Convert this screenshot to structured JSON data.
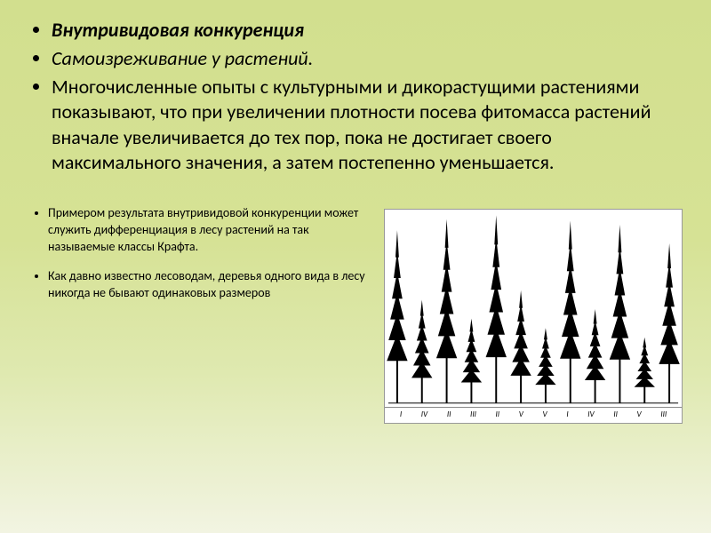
{
  "slide": {
    "background_gradient": [
      "#d2df8e",
      "#d6e295",
      "#dfe9b0",
      "#f2f4e2"
    ],
    "font_family": "Calibri",
    "main_bullets": {
      "title": "Внутривидовая конкуренция",
      "subtitle": " Самоизреживание у растений.",
      "body": "Многочисленные опыты с культурными и дикорастущими растениями показывают, что при увеличении плотности посева фитомасса растений вначале увеличивается до тех пор, пока не достигает своего максимального значения, а затем постепенно уменьшается."
    },
    "small_bullets": [
      "Примером результата внутривидовой конкуренции может служить дифференциация в лесу растений на так называемые классы Крафта.",
      "Как давно известно лесоводам, деревья одного вида в лесу никогда не бывают одинаковых размеров"
    ],
    "figure": {
      "type": "illustration",
      "description": "Row of coniferous trees of varying heights illustrating Kraft classes",
      "background_color": "#ffffff",
      "border_color": "#999999",
      "tree_count": 12,
      "tree_heights_rel": [
        0.92,
        0.55,
        0.98,
        0.45,
        1.0,
        0.6,
        0.4,
        0.97,
        0.5,
        0.95,
        0.35,
        0.85
      ],
      "tree_color": "#000000",
      "labels": [
        "I",
        "IV",
        "II",
        "III",
        "II",
        "V",
        "V",
        "I",
        "IV",
        "II",
        "V",
        "III"
      ],
      "label_fontsize": 9,
      "ground_line_color": "#000000"
    }
  },
  "text_styles": {
    "main_fontsize": 22,
    "small_fontsize": 14,
    "title_weight": 700,
    "body_weight": 400
  }
}
